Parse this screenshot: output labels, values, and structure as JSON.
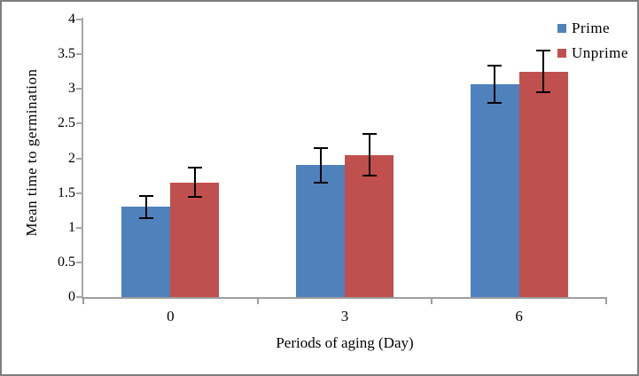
{
  "chart": {
    "y_tick_labels": [
      "0",
      "0.5",
      "1",
      "1.5",
      "2",
      "2.5",
      "3",
      "3.5",
      "4"
    ]
  },
  "chart_data": {
    "type": "bar",
    "categories": [
      "0",
      "3",
      "6"
    ],
    "series": [
      {
        "name": "Prime",
        "color": "#4F81BD",
        "values": [
          1.3,
          1.9,
          3.07
        ],
        "errors": [
          0.16,
          0.25,
          0.27
        ]
      },
      {
        "name": "Unprime",
        "color": "#C0504D",
        "values": [
          1.65,
          2.05,
          3.25
        ],
        "errors": [
          0.21,
          0.3,
          0.3
        ]
      }
    ],
    "title": "",
    "xlabel": "Periods of aging (Day)",
    "ylabel": "Mean time to germination",
    "ylim": [
      0,
      4
    ],
    "ytick_step": 0.5,
    "legend_position": "top-right",
    "grid": false,
    "error_bars": true,
    "axis_color": "#A6A6A6",
    "error_bar_color": "#000000",
    "frame_border_color": "#7F7F7F"
  }
}
